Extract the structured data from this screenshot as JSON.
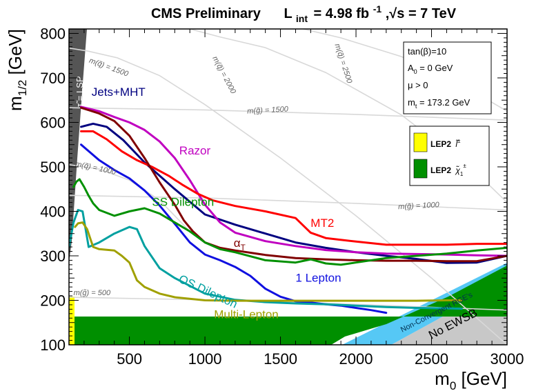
{
  "chart_data": {
    "type": "line",
    "title": {
      "prefix": "CMS Preliminary",
      "lumi_symbol": "L",
      "lumi_sub": "int",
      "lumi_value": "= 4.98 fb",
      "lumi_sup": "-1",
      "energy_value": ",√s = 7 TeV"
    },
    "xlabel": {
      "main": "m",
      "sub": "0",
      "unit": " [GeV]"
    },
    "ylabel": {
      "main": "m",
      "sub": "1/2",
      "unit": " [GeV]"
    },
    "xlim": [
      100,
      3000
    ],
    "ylim": [
      100,
      810
    ],
    "xticks": [
      500,
      1000,
      1500,
      2000,
      2500,
      3000
    ],
    "yticks": [
      100,
      200,
      300,
      400,
      500,
      600,
      700,
      800
    ],
    "params": [
      {
        "text": "tan(β)=10"
      },
      {
        "main": "A",
        "sub": "0",
        "rest": " = 0 GeV"
      },
      {
        "text": "μ > 0"
      },
      {
        "main": "m",
        "sub": "t",
        "rest": " = 173.2 GeV"
      }
    ],
    "legend": [
      {
        "label": "LEP2",
        "particle": "l̃",
        "sup": "±",
        "color": "#ffff00"
      },
      {
        "label": "LEP2",
        "particle": "χ̃",
        "sub": "1",
        "sup": "±",
        "color": "#008f00"
      }
    ],
    "regions": {
      "lsp_label": "τ̃ = LSP",
      "lsp_color": "#555555",
      "nonconv_label": "Non-Convergent RGE's",
      "nonconv_color": "#56c8f5",
      "no_ewsb_label": "No EWSB",
      "no_ewsb_color": "#c8c8c8"
    },
    "iso_curves": [
      {
        "label": "m(q̃) = 1500",
        "x": [
          100,
          230,
          420,
          700,
          1000,
          1500,
          2000,
          2500,
          3000
        ],
        "y": [
          767,
          760,
          745,
          705,
          640,
          520,
          390,
          250,
          100
        ]
      },
      {
        "label": "m(q̃) = 2000",
        "x": [
          900,
          1100,
          1400,
          1800,
          2300,
          2800,
          3000
        ],
        "y": [
          810,
          792,
          768,
          712,
          617,
          486,
          420
        ]
      },
      {
        "label": "m(q̃) = 2500",
        "x": [
          1650,
          1900,
          2300,
          2700,
          3000
        ],
        "y": [
          810,
          790,
          748,
          685,
          625
        ]
      },
      {
        "label": "m(q̃) = 1000",
        "x": [
          100,
          300,
          500,
          700,
          900
        ],
        "y": [
          505,
          495,
          470,
          425,
          355
        ]
      },
      {
        "label": "m(g̃) = 1500",
        "x": [
          100,
          1000,
          2000,
          3000
        ],
        "y": [
          633,
          628,
          618,
          605
        ]
      },
      {
        "label": "m(g̃) = 1000",
        "x": [
          100,
          1000,
          2000,
          3000
        ],
        "y": [
          436,
          430,
          418,
          403
        ]
      },
      {
        "label": "m(g̃) = 500",
        "x": [
          100,
          1000,
          2000,
          3000
        ],
        "y": [
          207,
          201,
          191,
          178
        ]
      }
    ],
    "series": [
      {
        "name": "Jets+MHT",
        "color": "#000080",
        "x": [
          180,
          260,
          350,
          460,
          600,
          800,
          1000,
          1200,
          1400,
          1600,
          1800,
          2000,
          2200,
          2400,
          2600,
          2800,
          3000
        ],
        "y": [
          590,
          597,
          590,
          560,
          510,
          450,
          393,
          370,
          350,
          330,
          318,
          308,
          300,
          293,
          284,
          285,
          300
        ]
      },
      {
        "name": "Razor",
        "color": "#c000c0",
        "x": [
          180,
          300,
          400,
          500,
          600,
          700,
          800,
          900,
          1000,
          1100,
          1200,
          1400,
          1600,
          1800,
          2000,
          2200,
          2400,
          2600,
          2800,
          3000
        ],
        "y": [
          635,
          625,
          612,
          600,
          583,
          557,
          520,
          470,
          415,
          375,
          352,
          333,
          322,
          313,
          308,
          305,
          304,
          303,
          301,
          300
        ]
      },
      {
        "name": "MT2",
        "color": "#ff0000",
        "x": [
          180,
          260,
          350,
          450,
          550,
          650,
          760,
          850,
          950,
          1050,
          1200,
          1400,
          1600,
          1700,
          1800,
          2000,
          2200,
          2400,
          2600,
          2800,
          3000
        ],
        "y": [
          580,
          580,
          562,
          535,
          515,
          500,
          480,
          460,
          440,
          425,
          412,
          400,
          385,
          352,
          340,
          332,
          325,
          325,
          325,
          327,
          327
        ]
      },
      {
        "name": "αT",
        "color": "#800000",
        "x": [
          180,
          300,
          400,
          500,
          600,
          700,
          800,
          860,
          920,
          1000,
          1100,
          1200,
          1400,
          1600,
          1800,
          2000,
          2200,
          2400,
          2600,
          2800,
          3000
        ],
        "y": [
          633,
          620,
          603,
          570,
          520,
          465,
          415,
          380,
          355,
          330,
          318,
          312,
          302,
          295,
          292,
          290,
          289,
          289,
          288,
          288,
          300
        ]
      },
      {
        "name": "1 Lepton",
        "color": "#1010e0",
        "x": [
          180,
          300,
          400,
          500,
          600,
          700,
          800,
          900,
          1000,
          1100,
          1200,
          1300,
          1400,
          1500,
          1600,
          1700,
          1800,
          1900,
          2000,
          2100,
          2200
        ],
        "y": [
          550,
          515,
          493,
          474,
          447,
          413,
          372,
          330,
          303,
          290,
          275,
          255,
          226,
          208,
          198,
          195,
          191,
          188,
          183,
          178,
          172
        ]
      },
      {
        "name": "SS Dilepton",
        "color": "#009000",
        "x": [
          130,
          150,
          170,
          200,
          230,
          260,
          300,
          400,
          500,
          600,
          700,
          800,
          900,
          1000,
          1100,
          1200,
          1400,
          1600,
          1700,
          1800,
          1900,
          2000,
          2200,
          2400,
          2600,
          2800,
          3000
        ],
        "y": [
          455,
          467,
          472,
          455,
          435,
          418,
          403,
          390,
          400,
          407,
          395,
          375,
          355,
          330,
          315,
          308,
          290,
          285,
          292,
          283,
          280,
          285,
          295,
          300,
          305,
          312,
          318
        ]
      },
      {
        "name": "OS Dilepton",
        "color": "#00a0a0",
        "x": [
          100,
          130,
          160,
          190,
          230,
          300,
          400,
          500,
          550,
          600,
          700,
          800,
          1000,
          1200,
          1400,
          1600,
          1800,
          2000,
          2200,
          2400,
          2600,
          2700
        ],
        "y": [
          320,
          375,
          403,
          400,
          320,
          330,
          350,
          365,
          360,
          322,
          272,
          250,
          215,
          201,
          196,
          193,
          191,
          188,
          185,
          183,
          182,
          181
        ]
      },
      {
        "name": "Multi-Lepton",
        "color": "#a0a000",
        "x": [
          140,
          160,
          190,
          220,
          260,
          300,
          400,
          450,
          500,
          550,
          600,
          700,
          800,
          1000,
          1200,
          1400,
          1600,
          1800,
          2000,
          2200,
          2400,
          2600,
          2700
        ],
        "y": [
          365,
          373,
          375,
          360,
          320,
          315,
          312,
          300,
          285,
          245,
          230,
          215,
          207,
          200,
          199,
          199,
          199,
          199,
          199,
          199,
          199,
          200,
          200
        ]
      }
    ],
    "series_labels": [
      {
        "name": "Jets+MHT",
        "text": "Jets+MHT",
        "x": 250,
        "y": 660,
        "color": "#000080"
      },
      {
        "name": "Razor",
        "text": "Razor",
        "x": 830,
        "y": 528,
        "color": "#c000c0"
      },
      {
        "name": "MT2",
        "text": "MT2",
        "x": 1700,
        "y": 365,
        "color": "#ff0000"
      },
      {
        "name": "αT",
        "main": "α",
        "sub": "T",
        "x": 1190,
        "y": 320,
        "color": "#800000"
      },
      {
        "name": "1 Lepton",
        "text": "1 Lepton",
        "x": 1600,
        "y": 242,
        "color": "#1010e0"
      },
      {
        "name": "SS Dilepton",
        "text": "SS Dilepton",
        "x": 650,
        "y": 412,
        "color": "#009000"
      },
      {
        "name": "OS Dilepton",
        "text": "OS Dilepton",
        "x": 820,
        "y": 242,
        "color": "#00a0a0",
        "angle": 25
      },
      {
        "name": "Multi-Lepton",
        "text": "Multi-Lepton",
        "x": 1060,
        "y": 160,
        "color": "#a0a000"
      }
    ]
  }
}
